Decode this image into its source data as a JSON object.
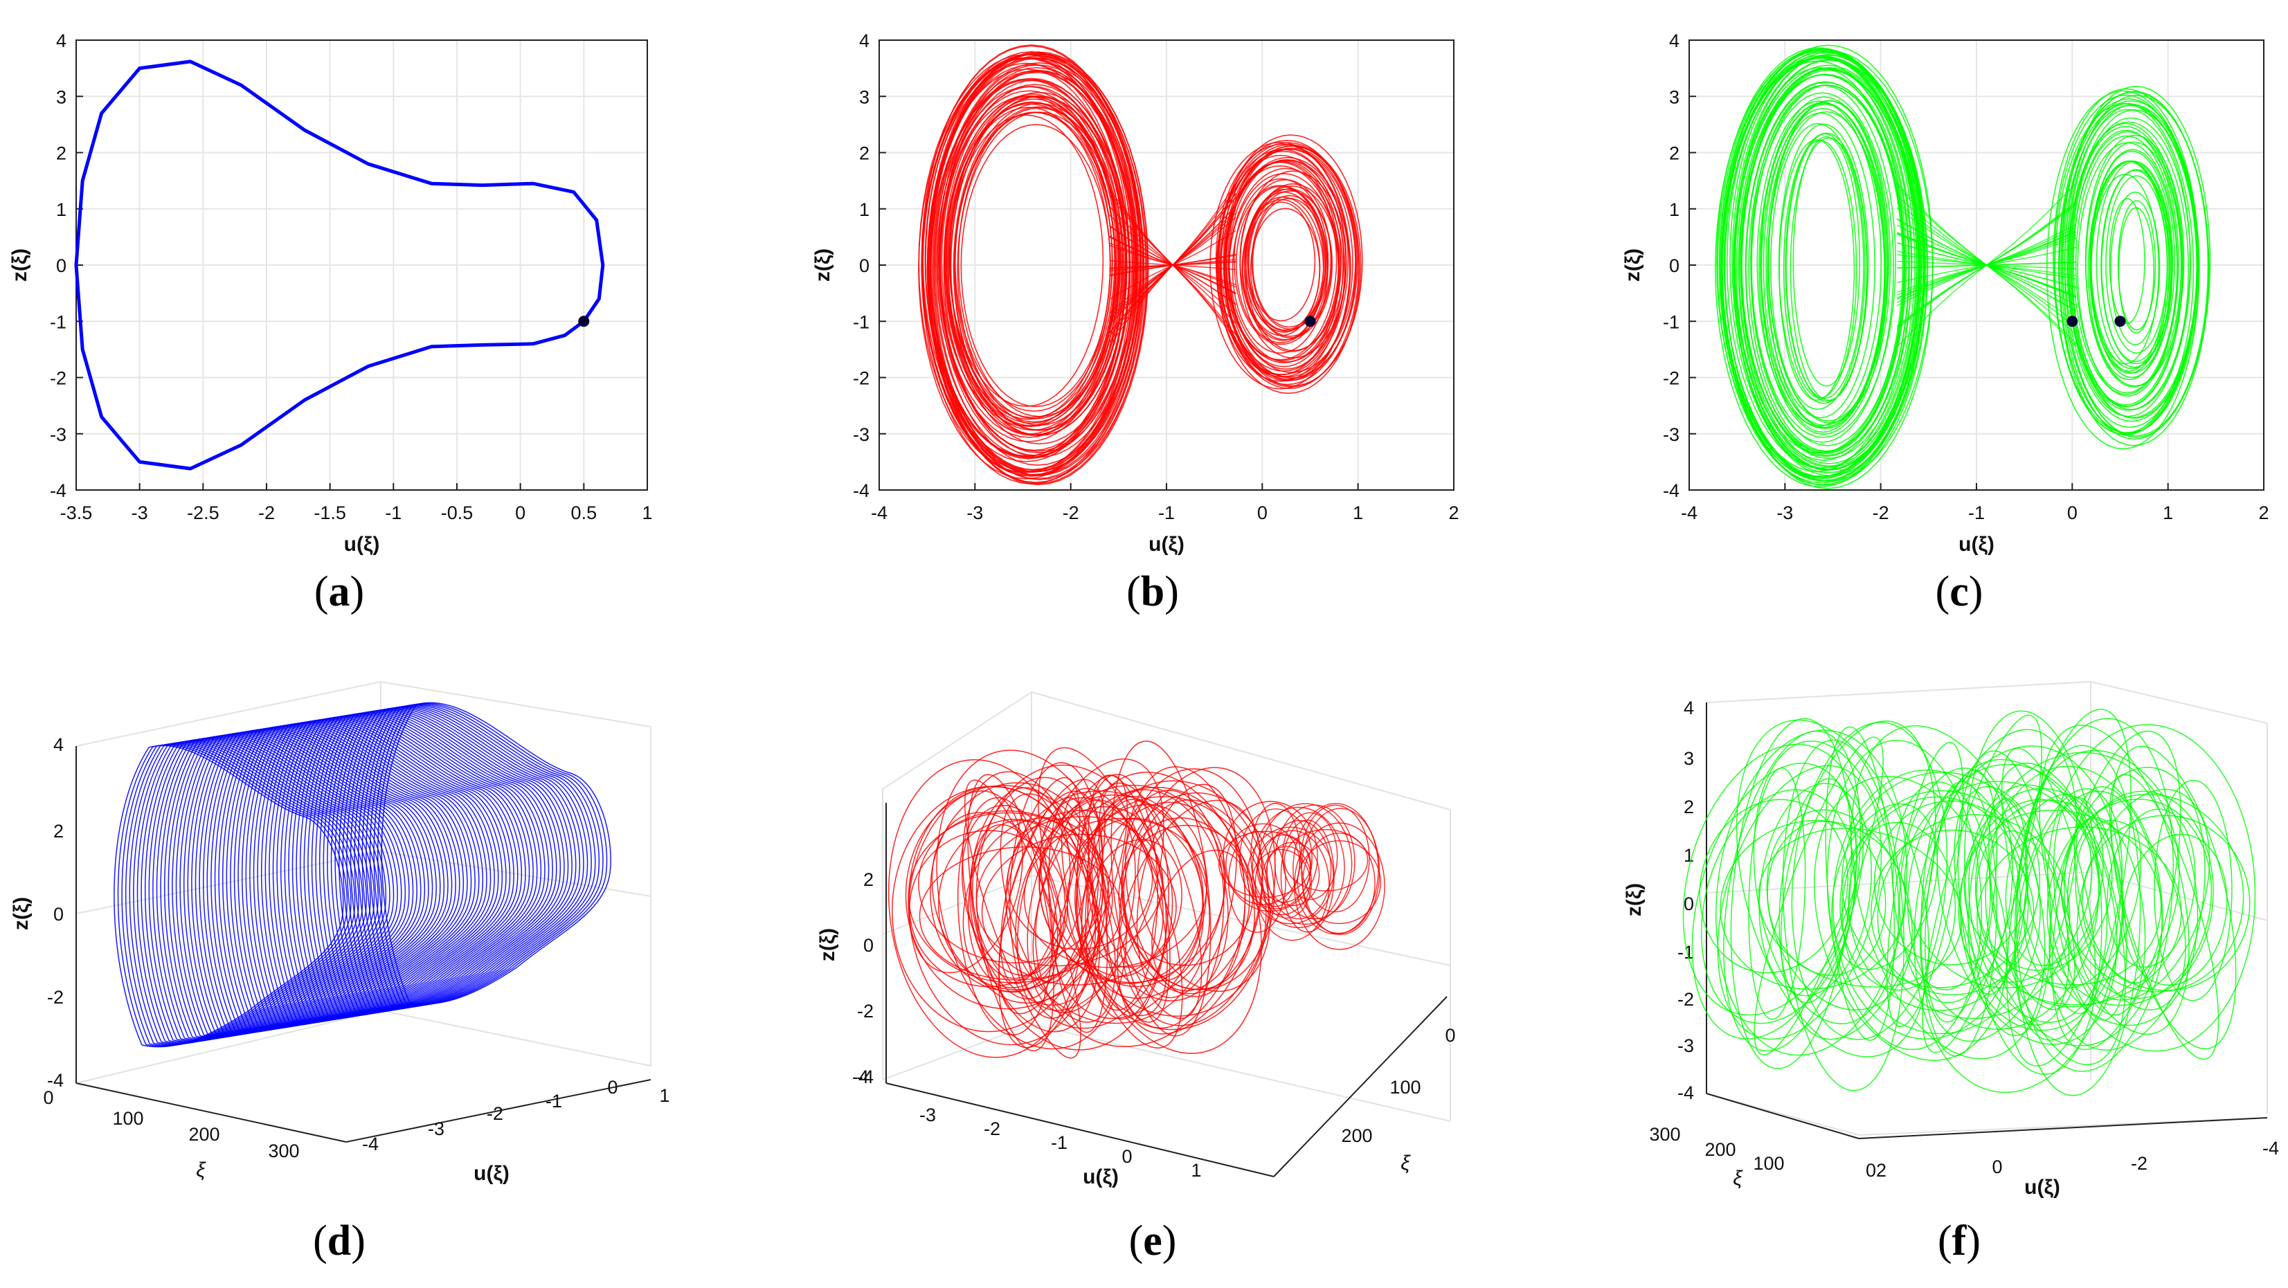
{
  "panels": [
    {
      "caption": "a",
      "chart_data": {
        "type": "line",
        "view": "2d",
        "xlabel": "u(ξ)",
        "ylabel": "z(ξ)",
        "xlim": [
          -3.5,
          1
        ],
        "ylim": [
          -4,
          4
        ],
        "xticks": [
          "-3.5",
          "-3",
          "-2.5",
          "-2",
          "-1.5",
          "-1",
          "-0.5",
          "0",
          "0.5",
          "1"
        ],
        "yticks": [
          "-4",
          "-3",
          "-2",
          "-1",
          "0",
          "1",
          "2",
          "3",
          "4"
        ],
        "grid": true,
        "series": [
          {
            "color": "#0000ff",
            "style": "closed-orbit",
            "points": [
              [
                0.5,
                -1.0
              ],
              [
                0.62,
                -0.6
              ],
              [
                0.65,
                0.0
              ],
              [
                0.6,
                0.8
              ],
              [
                0.42,
                1.3
              ],
              [
                0.1,
                1.45
              ],
              [
                -0.3,
                1.42
              ],
              [
                -0.7,
                1.45
              ],
              [
                -1.2,
                1.8
              ],
              [
                -1.7,
                2.4
              ],
              [
                -2.2,
                3.2
              ],
              [
                -2.6,
                3.62
              ],
              [
                -3.0,
                3.5
              ],
              [
                -3.3,
                2.7
              ],
              [
                -3.45,
                1.5
              ],
              [
                -3.5,
                0.0
              ],
              [
                -3.45,
                -1.5
              ],
              [
                -3.3,
                -2.7
              ],
              [
                -3.0,
                -3.5
              ],
              [
                -2.6,
                -3.62
              ],
              [
                -2.2,
                -3.2
              ],
              [
                -1.7,
                -2.4
              ],
              [
                -1.2,
                -1.8
              ],
              [
                -0.7,
                -1.45
              ],
              [
                -0.3,
                -1.42
              ],
              [
                0.1,
                -1.4
              ],
              [
                0.35,
                -1.25
              ],
              [
                0.5,
                -1.0
              ]
            ]
          }
        ],
        "markers": [
          [
            0.5,
            -1.0
          ]
        ]
      }
    },
    {
      "caption": "b",
      "chart_data": {
        "type": "line",
        "view": "2d",
        "xlabel": "u(ξ)",
        "ylabel": "z(ξ)",
        "xlim": [
          -4,
          2
        ],
        "ylim": [
          -4,
          4
        ],
        "xticks": [
          "-4",
          "-3",
          "-2",
          "-1",
          "0",
          "1",
          "2"
        ],
        "yticks": [
          "-4",
          "-3",
          "-2",
          "-1",
          "0",
          "1",
          "2",
          "3",
          "4"
        ],
        "grid": true,
        "series": [
          {
            "color": "#ff0000",
            "style": "chaotic",
            "left_lobe": {
              "center": [
                -2.4,
                0.0
              ],
              "rx": [
                0.75,
                1.15
              ],
              "ry": [
                2.4,
                3.85
              ]
            },
            "right_lobe": {
              "center": [
                0.25,
                0.0
              ],
              "rx": [
                0.3,
                0.75
              ],
              "ry": [
                0.9,
                2.25
              ]
            }
          }
        ],
        "markers": [
          [
            0.5,
            -1.0
          ]
        ]
      }
    },
    {
      "caption": "c",
      "chart_data": {
        "type": "line",
        "view": "2d",
        "xlabel": "u(ξ)",
        "ylabel": "z(ξ)",
        "xlim": [
          -4,
          2
        ],
        "ylim": [
          -4,
          4
        ],
        "xticks": [
          "-4",
          "-3",
          "-2",
          "-1",
          "0",
          "1",
          "2"
        ],
        "yticks": [
          "-4",
          "-3",
          "-2",
          "-1",
          "0",
          "1",
          "2",
          "3",
          "4"
        ],
        "grid": true,
        "series": [
          {
            "color": "#00ff00",
            "style": "chaotic",
            "left_lobe": {
              "center": [
                -2.6,
                0.0
              ],
              "rx": [
                0.25,
                1.1
              ],
              "ry": [
                2.0,
                3.9
              ]
            },
            "right_lobe": {
              "center": [
                0.6,
                0.0
              ],
              "rx": [
                0.15,
                0.8
              ],
              "ry": [
                1.0,
                3.2
              ]
            }
          }
        ],
        "markers": [
          [
            0.0,
            -1.0
          ],
          [
            0.5,
            -1.0
          ]
        ]
      }
    },
    {
      "caption": "d",
      "chart_data": {
        "type": "line",
        "view": "3d",
        "xlabel": "ξ",
        "ylabel": "u(ξ)",
        "zlabel": "z(ξ)",
        "xticks": [
          "0",
          "100",
          "200",
          "300"
        ],
        "yticks": [
          "-4",
          "-3",
          "-2",
          "-1",
          "0",
          "1"
        ],
        "zticks": [
          "-4",
          "-2",
          "0",
          "2",
          "4"
        ],
        "grid": true,
        "series": [
          {
            "color": "#0000ff",
            "style": "tube"
          }
        ]
      }
    },
    {
      "caption": "e",
      "chart_data": {
        "type": "line",
        "view": "3d",
        "xlabel": "u(ξ)",
        "ylabel": "ξ",
        "zlabel": "z(ξ)",
        "xticks": [
          "-4",
          "-3",
          "-2",
          "-1",
          "0",
          "1"
        ],
        "yticks": [
          "0",
          "100",
          "200"
        ],
        "zticks": [
          "-4",
          "-2",
          "0",
          "2"
        ],
        "grid": true,
        "series": [
          {
            "color": "#ff0000",
            "style": "chaotic-3d"
          }
        ]
      }
    },
    {
      "caption": "f",
      "chart_data": {
        "type": "line",
        "view": "3d",
        "xlabel": "u(ξ)",
        "ylabel": "ξ",
        "zlabel": "z(ξ)",
        "xticks": [
          "02",
          "0",
          "-2",
          "-4"
        ],
        "yticks": [
          "300",
          "200",
          "100"
        ],
        "zticks": [
          "-4",
          "-3",
          "-2",
          "-1",
          "0",
          "1",
          "2",
          "3",
          "4"
        ],
        "grid": true,
        "series": [
          {
            "color": "#00ff00",
            "style": "chaotic-3d"
          }
        ]
      }
    }
  ]
}
